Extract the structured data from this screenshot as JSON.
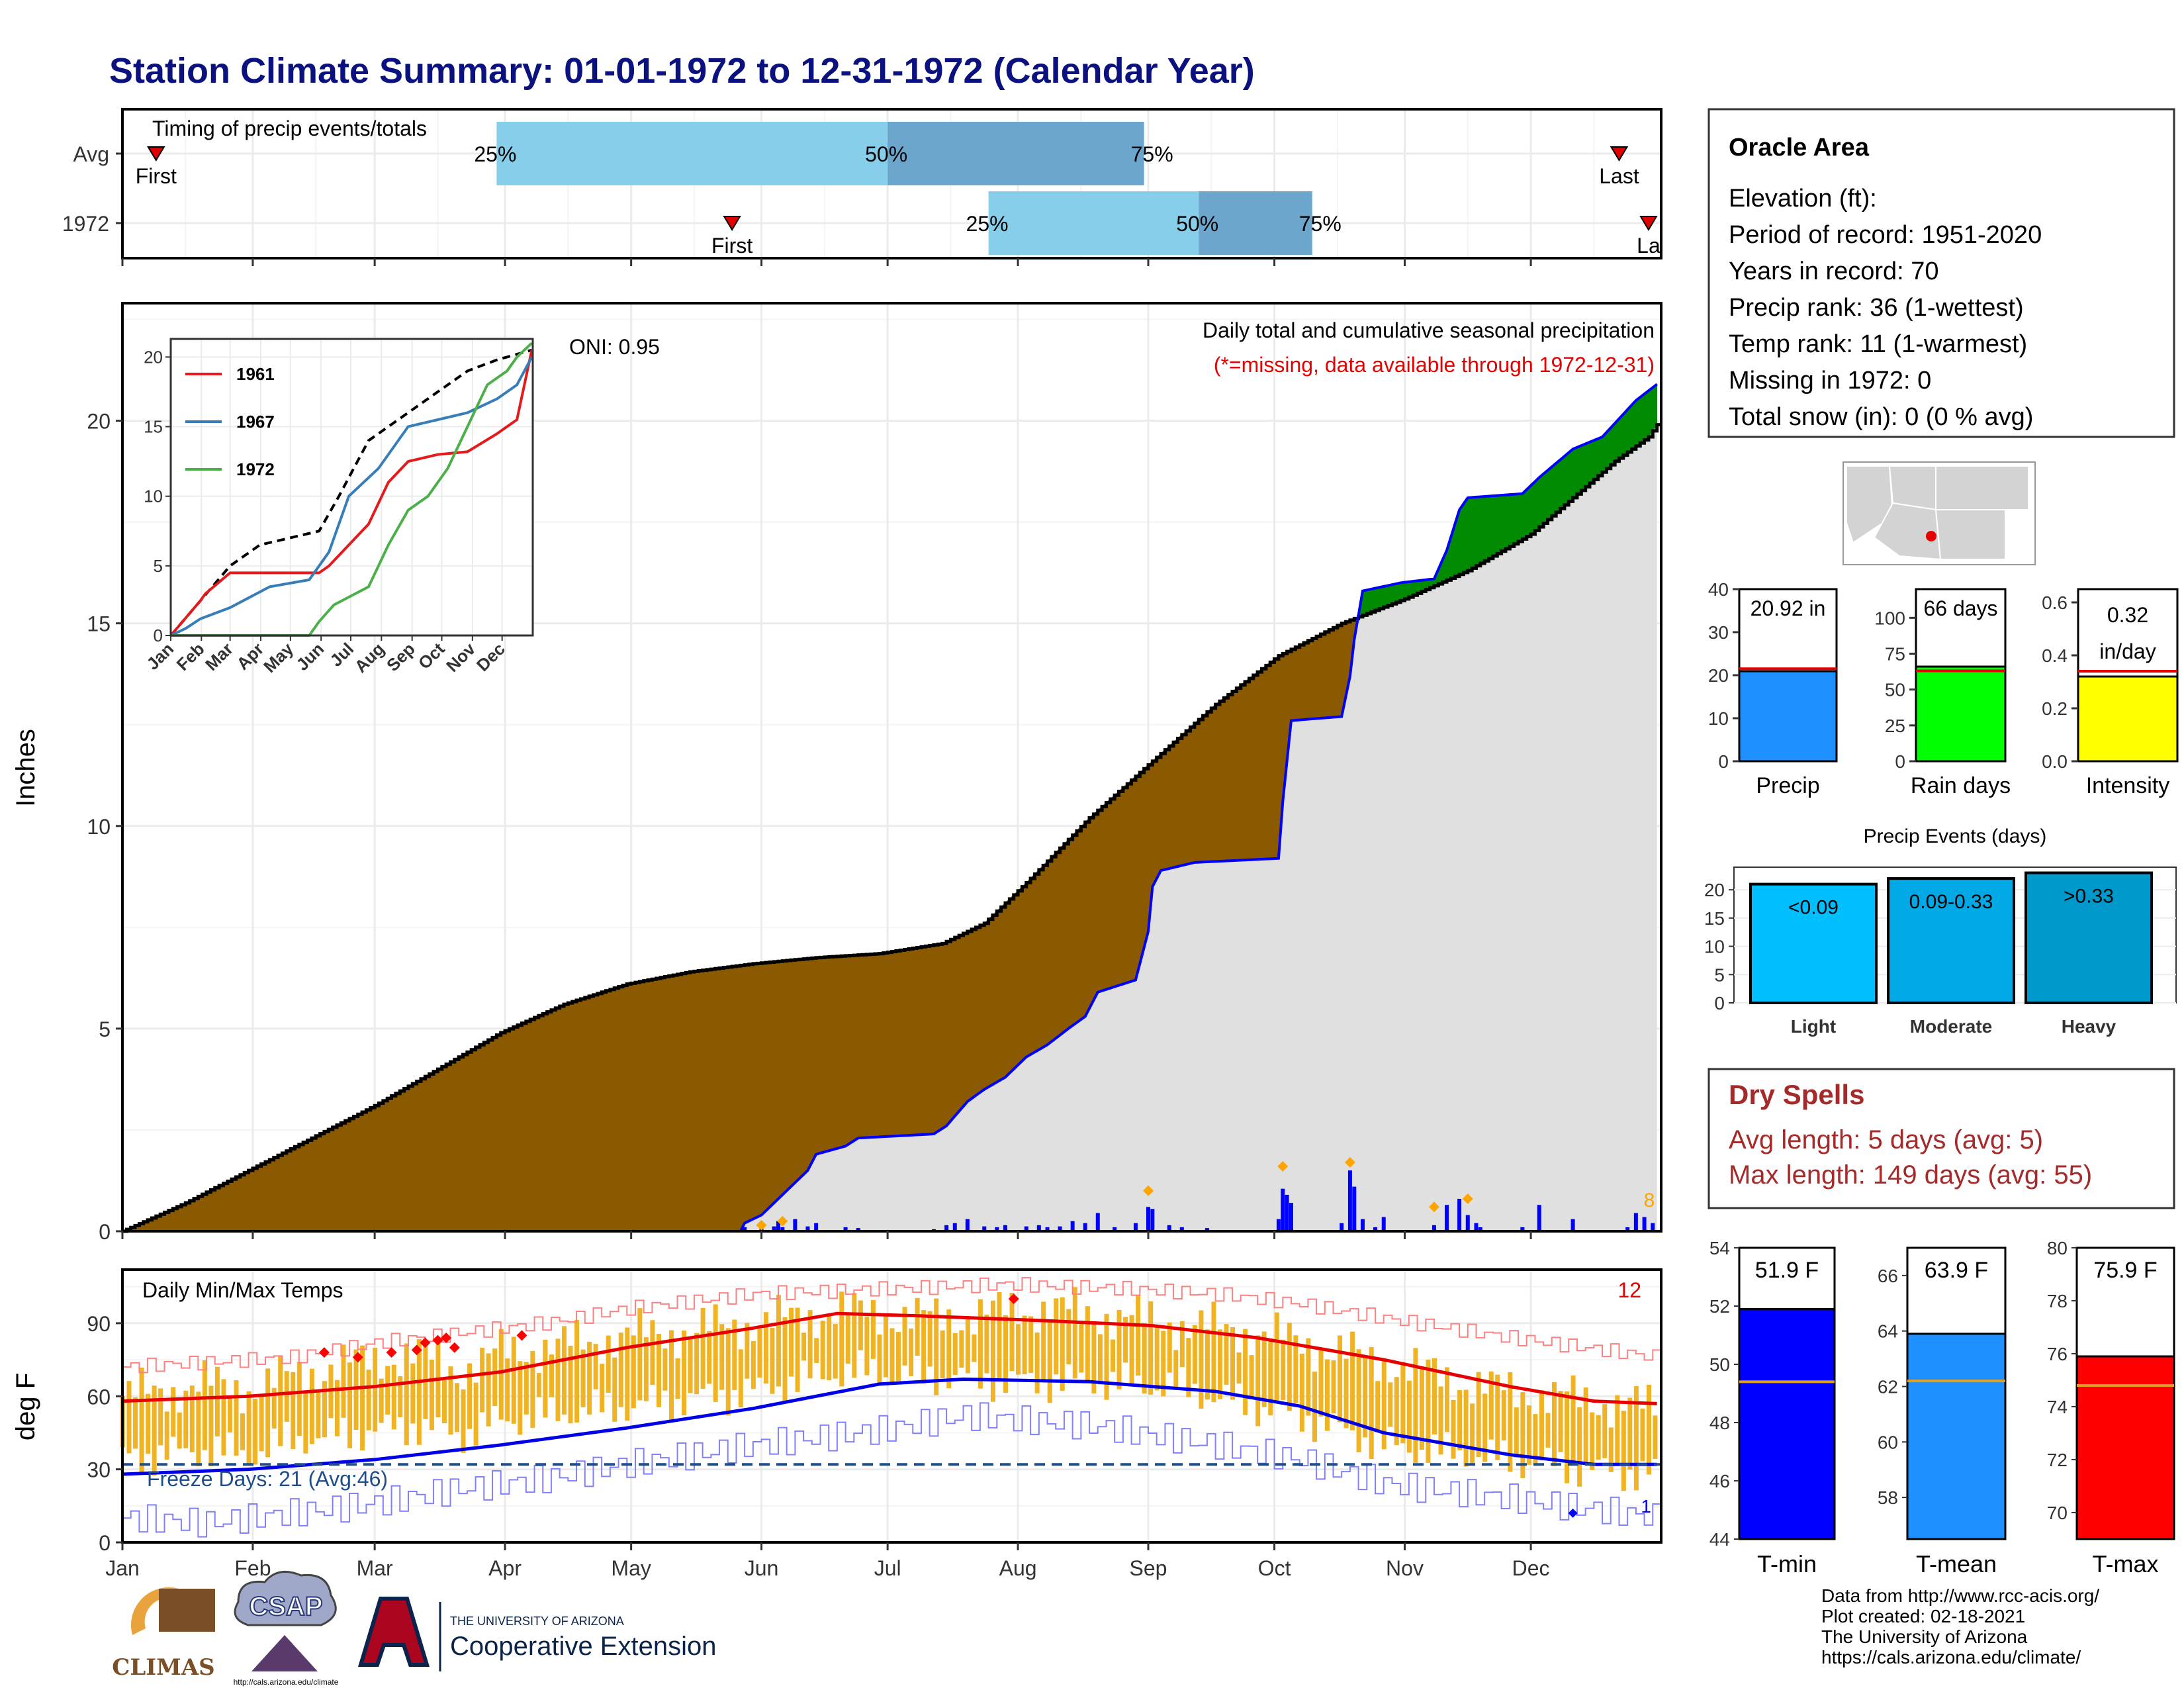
{
  "title": "Station Climate Summary: 01-01-1972 to 12-31-1972 (Calendar Year)",
  "months": [
    "Jan",
    "Feb",
    "Mar",
    "Apr",
    "May",
    "Jun",
    "Jul",
    "Aug",
    "Sep",
    "Oct",
    "Nov",
    "Dec"
  ],
  "timing": {
    "label": "Timing of precip events/totals",
    "rows": [
      {
        "name": "Avg",
        "first_label": "First",
        "last_label": "Last",
        "first_day": 8,
        "last_day": 356,
        "p25": 89,
        "p50": 182,
        "p75": 243,
        "p25_label": "25%",
        "p50_label": "50%",
        "p75_label": "75%"
      },
      {
        "name": "1972",
        "first_label": "First",
        "last_label": "La",
        "first_day": 145,
        "last_day": 363,
        "p25": 206,
        "p50": 256,
        "p75": 283,
        "p25_label": "25%",
        "p50_label": "50%",
        "p75_label": "75%"
      }
    ]
  },
  "precip": {
    "ylabel": "Inches",
    "yticks": [
      "0",
      "5",
      "10",
      "15",
      "20"
    ],
    "oni": "ONI: 0.95",
    "header": "Daily total and cumulative seasonal precipitation",
    "missing_note": "(*=missing, data available through 1972-12-31)",
    "corner_count": "8",
    "avg_cumulative": [
      [
        0,
        0
      ],
      [
        15,
        0.7
      ],
      [
        30,
        1.5
      ],
      [
        45,
        2.3
      ],
      [
        60,
        3.1
      ],
      [
        75,
        4.0
      ],
      [
        90,
        4.9
      ],
      [
        105,
        5.6
      ],
      [
        120,
        6.1
      ],
      [
        135,
        6.4
      ],
      [
        150,
        6.6
      ],
      [
        165,
        6.75
      ],
      [
        180,
        6.85
      ],
      [
        195,
        7.1
      ],
      [
        205,
        7.6
      ],
      [
        215,
        8.6
      ],
      [
        230,
        10.2
      ],
      [
        245,
        11.6
      ],
      [
        260,
        13.0
      ],
      [
        275,
        14.2
      ],
      [
        290,
        15.0
      ],
      [
        305,
        15.6
      ],
      [
        320,
        16.3
      ],
      [
        335,
        17.2
      ],
      [
        345,
        18.1
      ],
      [
        355,
        19.0
      ],
      [
        363,
        19.6
      ],
      [
        365,
        19.9
      ]
    ],
    "obs_cumulative": [
      [
        0,
        0
      ],
      [
        147,
        0
      ],
      [
        148,
        0.2
      ],
      [
        152,
        0.4
      ],
      [
        160,
        1.2
      ],
      [
        163,
        1.5
      ],
      [
        165,
        1.9
      ],
      [
        172,
        2.1
      ],
      [
        175,
        2.3
      ],
      [
        193,
        2.4
      ],
      [
        196,
        2.6
      ],
      [
        201,
        3.2
      ],
      [
        205,
        3.5
      ],
      [
        210,
        3.8
      ],
      [
        215,
        4.3
      ],
      [
        220,
        4.6
      ],
      [
        225,
        5.0
      ],
      [
        229,
        5.3
      ],
      [
        232,
        5.9
      ],
      [
        241,
        6.2
      ],
      [
        244,
        7.4
      ],
      [
        245,
        8.5
      ],
      [
        247,
        8.9
      ],
      [
        255,
        9.1
      ],
      [
        275,
        9.2
      ],
      [
        276,
        10.6
      ],
      [
        277,
        11.6
      ],
      [
        278,
        12.6
      ],
      [
        290,
        12.7
      ],
      [
        292,
        13.7
      ],
      [
        293,
        14.6
      ],
      [
        295,
        15.8
      ],
      [
        304,
        16.0
      ],
      [
        312,
        16.1
      ],
      [
        315,
        16.8
      ],
      [
        318,
        17.8
      ],
      [
        320,
        18.1
      ],
      [
        333,
        18.2
      ],
      [
        337,
        18.6
      ],
      [
        345,
        19.3
      ],
      [
        352,
        19.6
      ],
      [
        360,
        20.5
      ],
      [
        365,
        20.9
      ]
    ],
    "daily": [
      [
        148,
        0.1
      ],
      [
        152,
        0.15
      ],
      [
        155,
        0.12
      ],
      [
        156,
        0.25
      ],
      [
        157,
        0.1
      ],
      [
        160,
        0.3
      ],
      [
        163,
        0.12
      ],
      [
        165,
        0.2
      ],
      [
        172,
        0.1
      ],
      [
        175,
        0.08
      ],
      [
        193,
        0.05
      ],
      [
        196,
        0.15
      ],
      [
        198,
        0.2
      ],
      [
        201,
        0.3
      ],
      [
        205,
        0.12
      ],
      [
        208,
        0.1
      ],
      [
        210,
        0.15
      ],
      [
        215,
        0.12
      ],
      [
        218,
        0.15
      ],
      [
        220,
        0.1
      ],
      [
        223,
        0.12
      ],
      [
        226,
        0.25
      ],
      [
        229,
        0.2
      ],
      [
        232,
        0.45
      ],
      [
        236,
        0.1
      ],
      [
        241,
        0.2
      ],
      [
        244,
        0.6
      ],
      [
        245,
        0.55
      ],
      [
        249,
        0.15
      ],
      [
        252,
        0.1
      ],
      [
        258,
        0.08
      ],
      [
        275,
        0.3
      ],
      [
        276,
        1.05
      ],
      [
        277,
        0.9
      ],
      [
        278,
        0.7
      ],
      [
        290,
        0.2
      ],
      [
        292,
        1.5
      ],
      [
        293,
        1.1
      ],
      [
        295,
        0.3
      ],
      [
        298,
        0.1
      ],
      [
        300,
        0.35
      ],
      [
        312,
        0.15
      ],
      [
        315,
        0.65
      ],
      [
        318,
        0.8
      ],
      [
        320,
        0.4
      ],
      [
        322,
        0.2
      ],
      [
        323,
        0.1
      ],
      [
        333,
        0.1
      ],
      [
        337,
        0.65
      ],
      [
        345,
        0.3
      ],
      [
        358,
        0.1
      ],
      [
        360,
        0.45
      ],
      [
        362,
        0.35
      ],
      [
        364,
        0.2
      ]
    ],
    "event_markers": [
      [
        152,
        0.15
      ],
      [
        157,
        0.25
      ],
      [
        244,
        1.0
      ],
      [
        276,
        1.6
      ],
      [
        292,
        1.7
      ],
      [
        312,
        0.6
      ],
      [
        320,
        0.8
      ]
    ]
  },
  "inset": {
    "yticks": [
      "0",
      "5",
      "10",
      "15",
      "20"
    ],
    "legend": [
      {
        "name": "1961",
        "color": "#e41a1c"
      },
      {
        "name": "1967",
        "color": "#377eb8"
      },
      {
        "name": "1972",
        "color": "#4daf4a"
      }
    ],
    "avg": [
      [
        0,
        0
      ],
      [
        30,
        2.5
      ],
      [
        60,
        5.0
      ],
      [
        90,
        6.5
      ],
      [
        120,
        7.0
      ],
      [
        150,
        7.5
      ],
      [
        170,
        10.0
      ],
      [
        200,
        14.0
      ],
      [
        240,
        16.0
      ],
      [
        270,
        17.5
      ],
      [
        300,
        19.0
      ],
      [
        330,
        19.8
      ],
      [
        365,
        20.5
      ]
    ],
    "y1961": [
      [
        0,
        0
      ],
      [
        30,
        2.5
      ],
      [
        35,
        3.0
      ],
      [
        60,
        4.5
      ],
      [
        120,
        4.5
      ],
      [
        150,
        4.5
      ],
      [
        160,
        5.0
      ],
      [
        180,
        6.5
      ],
      [
        200,
        8.0
      ],
      [
        220,
        11.0
      ],
      [
        240,
        12.5
      ],
      [
        270,
        13.0
      ],
      [
        300,
        13.2
      ],
      [
        330,
        14.5
      ],
      [
        350,
        15.5
      ],
      [
        365,
        20.5
      ]
    ],
    "y1967": [
      [
        0,
        0
      ],
      [
        15,
        0.5
      ],
      [
        30,
        1.2
      ],
      [
        60,
        2.0
      ],
      [
        100,
        3.5
      ],
      [
        140,
        4.0
      ],
      [
        160,
        6.0
      ],
      [
        180,
        10.0
      ],
      [
        210,
        12.0
      ],
      [
        240,
        15.0
      ],
      [
        270,
        15.5
      ],
      [
        300,
        16.0
      ],
      [
        330,
        17.0
      ],
      [
        350,
        18.0
      ],
      [
        365,
        20.0
      ]
    ],
    "y1972": [
      [
        0,
        0
      ],
      [
        140,
        0
      ],
      [
        150,
        1.0
      ],
      [
        165,
        2.2
      ],
      [
        200,
        3.5
      ],
      [
        220,
        6.5
      ],
      [
        240,
        9.0
      ],
      [
        260,
        10.0
      ],
      [
        280,
        12.0
      ],
      [
        300,
        15.0
      ],
      [
        320,
        18.0
      ],
      [
        340,
        19.0
      ],
      [
        350,
        20.0
      ],
      [
        365,
        21.0
      ]
    ]
  },
  "temps": {
    "ylabel": "deg F",
    "yticks": [
      "0",
      "30",
      "60",
      "90"
    ],
    "label": "Daily Min/Max Temps",
    "freeze_days": "Freeze Days: 21 (Avg:46)",
    "corner_count_top": "12",
    "corner_count_bottom": "1",
    "freeze_line": 32,
    "avg_max": [
      [
        0,
        58
      ],
      [
        30,
        60
      ],
      [
        60,
        64
      ],
      [
        90,
        70
      ],
      [
        120,
        80
      ],
      [
        150,
        88
      ],
      [
        170,
        94
      ],
      [
        190,
        93
      ],
      [
        220,
        91
      ],
      [
        245,
        89
      ],
      [
        270,
        84
      ],
      [
        300,
        75
      ],
      [
        330,
        64
      ],
      [
        350,
        58
      ],
      [
        365,
        57
      ]
    ],
    "avg_min": [
      [
        0,
        28
      ],
      [
        30,
        30
      ],
      [
        60,
        34
      ],
      [
        90,
        40
      ],
      [
        120,
        47
      ],
      [
        150,
        55
      ],
      [
        180,
        65
      ],
      [
        200,
        67
      ],
      [
        230,
        66
      ],
      [
        260,
        62
      ],
      [
        280,
        56
      ],
      [
        300,
        45
      ],
      [
        330,
        36
      ],
      [
        350,
        32
      ],
      [
        365,
        32
      ]
    ],
    "rec_max": [
      [
        0,
        72
      ],
      [
        20,
        74
      ],
      [
        40,
        76
      ],
      [
        60,
        82
      ],
      [
        80,
        86
      ],
      [
        100,
        90
      ],
      [
        120,
        96
      ],
      [
        150,
        102
      ],
      [
        180,
        104
      ],
      [
        210,
        106
      ],
      [
        240,
        104
      ],
      [
        260,
        102
      ],
      [
        280,
        98
      ],
      [
        300,
        92
      ],
      [
        330,
        84
      ],
      [
        365,
        76
      ]
    ],
    "rec_min": [
      [
        0,
        10
      ],
      [
        20,
        8
      ],
      [
        40,
        12
      ],
      [
        60,
        16
      ],
      [
        80,
        22
      ],
      [
        100,
        26
      ],
      [
        120,
        32
      ],
      [
        150,
        40
      ],
      [
        180,
        46
      ],
      [
        200,
        52
      ],
      [
        230,
        48
      ],
      [
        260,
        40
      ],
      [
        280,
        34
      ],
      [
        300,
        24
      ],
      [
        330,
        18
      ],
      [
        365,
        10
      ]
    ],
    "obs_high": [
      [
        0,
        60
      ],
      [
        10,
        62
      ],
      [
        20,
        65
      ],
      [
        30,
        63
      ],
      [
        40,
        68
      ],
      [
        50,
        72
      ],
      [
        60,
        75
      ],
      [
        70,
        77
      ],
      [
        80,
        70
      ],
      [
        90,
        78
      ],
      [
        100,
        80
      ],
      [
        110,
        82
      ],
      [
        120,
        85
      ],
      [
        130,
        86
      ],
      [
        140,
        88
      ],
      [
        150,
        90
      ],
      [
        160,
        92
      ],
      [
        170,
        95
      ],
      [
        180,
        94
      ],
      [
        190,
        92
      ],
      [
        200,
        93
      ],
      [
        210,
        95
      ],
      [
        220,
        96
      ],
      [
        230,
        94
      ],
      [
        240,
        92
      ],
      [
        250,
        90
      ],
      [
        260,
        88
      ],
      [
        270,
        86
      ],
      [
        280,
        82
      ],
      [
        290,
        78
      ],
      [
        300,
        74
      ],
      [
        310,
        70
      ],
      [
        320,
        65
      ],
      [
        330,
        62
      ],
      [
        340,
        60
      ],
      [
        350,
        58
      ],
      [
        365,
        55
      ]
    ],
    "obs_low": [
      [
        0,
        35
      ],
      [
        10,
        36
      ],
      [
        20,
        38
      ],
      [
        30,
        36
      ],
      [
        40,
        42
      ],
      [
        50,
        44
      ],
      [
        60,
        46
      ],
      [
        70,
        48
      ],
      [
        80,
        44
      ],
      [
        90,
        50
      ],
      [
        100,
        52
      ],
      [
        110,
        54
      ],
      [
        120,
        56
      ],
      [
        130,
        58
      ],
      [
        140,
        60
      ],
      [
        150,
        62
      ],
      [
        160,
        66
      ],
      [
        170,
        70
      ],
      [
        180,
        70
      ],
      [
        190,
        68
      ],
      [
        200,
        68
      ],
      [
        210,
        66
      ],
      [
        220,
        66
      ],
      [
        230,
        66
      ],
      [
        240,
        65
      ],
      [
        250,
        64
      ],
      [
        260,
        60
      ],
      [
        270,
        56
      ],
      [
        280,
        52
      ],
      [
        290,
        46
      ],
      [
        300,
        40
      ],
      [
        310,
        38
      ],
      [
        320,
        36
      ],
      [
        330,
        34
      ],
      [
        340,
        32
      ],
      [
        350,
        30
      ],
      [
        365,
        28
      ]
    ],
    "record_high_markers": [
      [
        48,
        78
      ],
      [
        56,
        76
      ],
      [
        64,
        78
      ],
      [
        70,
        79
      ],
      [
        72,
        82
      ],
      [
        75,
        83
      ],
      [
        77,
        84
      ],
      [
        79,
        80
      ],
      [
        95,
        85
      ],
      [
        212,
        100
      ]
    ],
    "record_low_marker": [
      [
        345,
        12
      ]
    ]
  },
  "station": {
    "name": "Oracle Area",
    "lines": [
      "Elevation (ft):",
      "Period of record: 1951-2020",
      "Years in record: 70",
      "Precip rank: 36 (1-wettest)",
      "Temp rank: 11 (1-warmest)",
      "Missing in 1972: 0",
      "Total snow (in): 0 (0 % avg)"
    ]
  },
  "mini_bars": [
    {
      "label": "Precip",
      "value_text": "20.92 in",
      "value": 20.92,
      "avg": 21.5,
      "max": 40,
      "ticks": [
        "0",
        "10",
        "20",
        "30",
        "40"
      ],
      "color": "#1e90ff"
    },
    {
      "label": "Rain days",
      "value_text": "66 days",
      "value": 66,
      "avg": 63,
      "max": 120,
      "ticks": [
        "0",
        "25",
        "50",
        "75",
        "100"
      ],
      "color": "#00ff00"
    },
    {
      "label": "Intensity",
      "value_text_1": "0.32",
      "value_text_2": "in/day",
      "value": 0.32,
      "avg": 0.34,
      "max": 0.65,
      "ticks": [
        "0.0",
        "0.2",
        "0.4",
        "0.6"
      ],
      "color": "#ffff00"
    }
  ],
  "events": {
    "title": "Precip Events (days)",
    "ticks": [
      "0",
      "5",
      "10",
      "15",
      "20"
    ],
    "bars": [
      {
        "label": "Light",
        "range": "<0.09",
        "value": 21,
        "color": "#00bfff"
      },
      {
        "label": "Moderate",
        "range": "0.09-0.33",
        "value": 22,
        "color": "#00a9e6"
      },
      {
        "label": "Heavy",
        "range": ">0.33",
        "value": 23,
        "color": "#0099cc"
      }
    ]
  },
  "dry_spells": {
    "title": "Dry Spells",
    "avg_line": "Avg length: 5 days (avg: 5)",
    "max_line": "Max length: 149 days (avg: 55)"
  },
  "temp_bars": [
    {
      "label": "T-min",
      "value_text": "51.9 F",
      "value": 51.9,
      "avg": 49.4,
      "min": 44,
      "max": 54,
      "ticks": [
        "44",
        "46",
        "48",
        "50",
        "52",
        "54"
      ],
      "color": "#0000ff"
    },
    {
      "label": "T-mean",
      "value_text": "63.9 F",
      "value": 63.9,
      "avg": 62.2,
      "min": 56.5,
      "max": 67,
      "ticks": [
        "58",
        "60",
        "62",
        "64",
        "66"
      ],
      "color": "#1e90ff"
    },
    {
      "label": "T-max",
      "value_text": "75.9 F",
      "value": 75.9,
      "avg": 74.8,
      "min": 69,
      "max": 80,
      "ticks": [
        "70",
        "72",
        "74",
        "76",
        "78",
        "80"
      ],
      "color": "#ff0000"
    }
  ],
  "footer": {
    "lines": [
      "Data from http://www.rcc-acis.org/",
      "Plot created: 02-18-2021",
      "The University of Arizona",
      "https://cals.arizona.edu/climate/"
    ],
    "logo1": "CLIMAS",
    "logo2": "CSAP",
    "logo2_url": "http://cals.arizona.edu/climate",
    "logo3_small": "THE UNIVERSITY OF ARIZONA",
    "logo3_big": "Cooperative Extension"
  }
}
